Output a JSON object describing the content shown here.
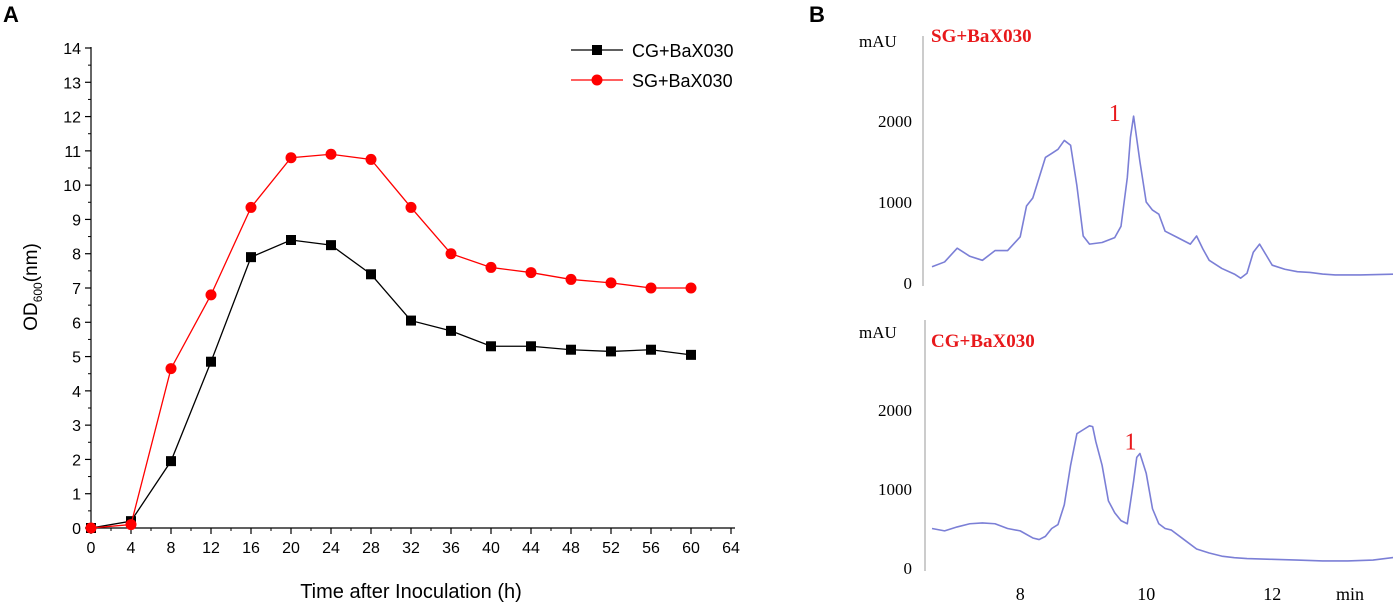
{
  "chart_data": [
    {
      "panel": "A",
      "type": "line",
      "title": "",
      "xlabel": "Time after Inoculation (h)",
      "ylabel_main": "OD",
      "ylabel_sub": "600",
      "ylabel_unit": "(nm)",
      "x": [
        0,
        4,
        8,
        12,
        16,
        20,
        24,
        28,
        32,
        36,
        40,
        44,
        48,
        52,
        56,
        60
      ],
      "xlim": [
        0,
        64
      ],
      "ylim": [
        0,
        14
      ],
      "xticks": [
        0,
        4,
        8,
        12,
        16,
        20,
        24,
        28,
        32,
        36,
        40,
        44,
        48,
        52,
        56,
        60,
        64
      ],
      "yticks": [
        0,
        1,
        2,
        3,
        4,
        5,
        6,
        7,
        8,
        9,
        10,
        11,
        12,
        13,
        14
      ],
      "legend_position": "top-right",
      "series": [
        {
          "name": "CG+BaX030",
          "color": "#000000",
          "marker": "square",
          "values": [
            0.0,
            0.2,
            1.95,
            4.85,
            7.9,
            8.4,
            8.25,
            7.4,
            6.05,
            5.75,
            5.3,
            5.3,
            5.2,
            5.15,
            5.2,
            5.05
          ]
        },
        {
          "name": "SG+BaX030",
          "color": "#ff0000",
          "marker": "circle",
          "values": [
            0.0,
            0.1,
            4.65,
            6.8,
            9.35,
            10.8,
            10.9,
            10.75,
            9.35,
            8.0,
            7.6,
            7.45,
            7.25,
            7.15,
            7.0,
            7.0
          ]
        }
      ]
    },
    {
      "panel": "B",
      "type": "line",
      "title": "",
      "xlabel": "min",
      "xticks": [
        8,
        10,
        12
      ],
      "xlim": [
        6.6,
        14.0
      ],
      "subplots": [
        {
          "name": "SG+BaX030",
          "ylabel": "mAU",
          "yticks": [
            0,
            1000,
            2000
          ],
          "ylim": [
            0,
            2800
          ],
          "peak_label": "1",
          "peak_x": 9.5,
          "peak_y": 2000,
          "color": "#7b7fd6",
          "x": [
            6.6,
            6.8,
            7.0,
            7.2,
            7.4,
            7.6,
            7.8,
            8.0,
            8.1,
            8.2,
            8.3,
            8.4,
            8.5,
            8.6,
            8.7,
            8.8,
            8.9,
            9.0,
            9.1,
            9.3,
            9.5,
            9.6,
            9.7,
            9.75,
            9.8,
            9.9,
            10.0,
            10.1,
            10.2,
            10.3,
            10.5,
            10.7,
            10.8,
            10.9,
            11.0,
            11.2,
            11.4,
            11.5,
            11.6,
            11.7,
            11.8,
            11.9,
            12.0,
            12.2,
            12.4,
            12.6,
            12.8,
            13.0,
            13.4,
            14.0
          ],
          "y": [
            200,
            260,
            430,
            330,
            280,
            400,
            400,
            570,
            950,
            1050,
            1300,
            1550,
            1600,
            1650,
            1760,
            1700,
            1200,
            580,
            480,
            500,
            560,
            700,
            1300,
            1800,
            2060,
            1500,
            1000,
            900,
            850,
            640,
            560,
            480,
            580,
            420,
            280,
            180,
            110,
            60,
            120,
            380,
            480,
            350,
            220,
            170,
            140,
            130,
            110,
            100,
            100,
            110
          ]
        },
        {
          "name": "CG+BaX030",
          "ylabel": "mAU",
          "yticks": [
            0,
            1000,
            2000
          ],
          "ylim": [
            0,
            2800
          ],
          "peak_label": "1",
          "peak_x": 9.75,
          "peak_y": 1500,
          "color": "#7b7fd6",
          "x": [
            6.6,
            6.8,
            7.0,
            7.2,
            7.4,
            7.6,
            7.8,
            8.0,
            8.2,
            8.3,
            8.4,
            8.5,
            8.6,
            8.7,
            8.8,
            8.9,
            9.0,
            9.1,
            9.15,
            9.2,
            9.3,
            9.4,
            9.5,
            9.6,
            9.7,
            9.8,
            9.85,
            9.9,
            10.0,
            10.1,
            10.2,
            10.3,
            10.4,
            10.6,
            10.8,
            11.0,
            11.2,
            11.4,
            11.6,
            12.0,
            12.4,
            12.8,
            13.2,
            13.6,
            14.0
          ],
          "y": [
            500,
            470,
            520,
            560,
            570,
            560,
            500,
            470,
            380,
            360,
            400,
            500,
            550,
            800,
            1300,
            1700,
            1750,
            1800,
            1790,
            1600,
            1300,
            850,
            700,
            600,
            560,
            1100,
            1400,
            1450,
            1200,
            750,
            560,
            500,
            480,
            360,
            240,
            190,
            150,
            130,
            120,
            110,
            100,
            90,
            90,
            100,
            140
          ]
        }
      ]
    }
  ],
  "panel_labels": {
    "a": "A",
    "b": "B"
  }
}
